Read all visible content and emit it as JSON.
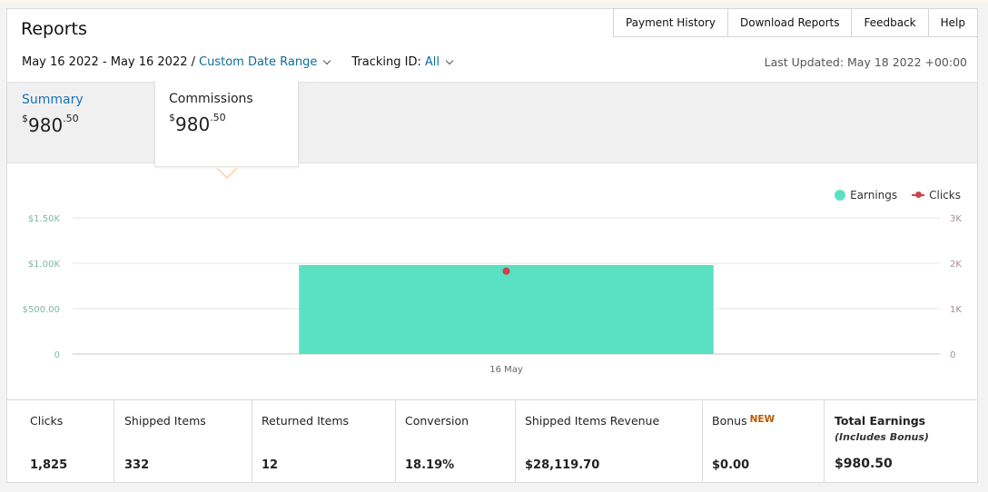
{
  "header": {
    "title": "Reports",
    "tabs": [
      "Payment History",
      "Download Reports",
      "Feedback",
      "Help"
    ],
    "date_range": "May 16 2022 - May 16 2022 /",
    "range_link": "Custom Date Range",
    "tracking_label": "Tracking ID:",
    "tracking_value": "All",
    "last_updated": "Last Updated: May 18 2022 +00:00"
  },
  "summary": {
    "summary_label": "Summary",
    "summary_amount": {
      "currency": "$",
      "whole": "980",
      "cents": ".50"
    },
    "commissions_label": "Commissions",
    "commissions_amount": {
      "currency": "$",
      "whole": "980",
      "cents": ".50"
    }
  },
  "chart_data": {
    "type": "bar",
    "categories": [
      "16 May"
    ],
    "series": [
      {
        "name": "Earnings",
        "values": [
          980.5
        ],
        "color": "#5ae0c3",
        "axis": "left"
      },
      {
        "name": "Clicks",
        "values": [
          1825
        ],
        "color": "#cc4444",
        "axis": "right",
        "kind": "line"
      }
    ],
    "y_left": {
      "ticks": [
        "$1.50K",
        "$1.00K",
        "$500.00",
        "0"
      ],
      "ylim": [
        0,
        1500
      ]
    },
    "y_right": {
      "ticks": [
        "3K",
        "2K",
        "1K",
        "0"
      ],
      "ylim": [
        0,
        3000
      ]
    },
    "legend": [
      "Earnings",
      "Clicks"
    ],
    "legend_position": "top-right",
    "grid": true
  },
  "metrics": [
    {
      "label": "Clicks",
      "value": "1,825"
    },
    {
      "label": "Shipped Items",
      "value": "332"
    },
    {
      "label": "Returned Items",
      "value": "12"
    },
    {
      "label": "Conversion",
      "value": "18.19%"
    },
    {
      "label": "Shipped Items Revenue",
      "value": "$28,119.70"
    },
    {
      "label": "Bonus",
      "badge": "NEW",
      "value": "$0.00"
    },
    {
      "label": "Total Earnings",
      "sublabel": "(Includes Bonus)",
      "value": "$980.50"
    }
  ]
}
